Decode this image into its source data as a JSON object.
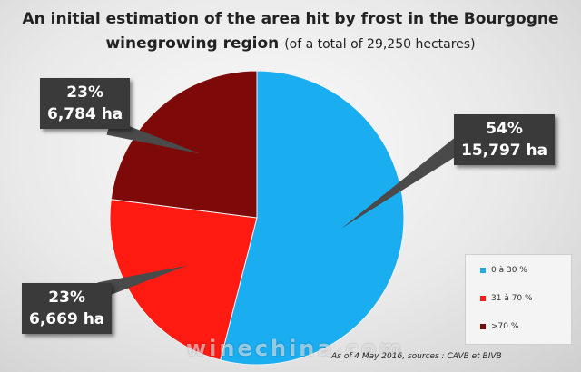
{
  "chart_data": {
    "type": "pie",
    "title": "An initial estimation of the area hit by frost in the Bourgogne winegrowing region",
    "subtitle": "(of a total of 29,250 hectares)",
    "legend_position": "bottom-right",
    "slices": [
      {
        "name": "0 à 30 %",
        "percent": 54,
        "hectares": 15797,
        "percent_label": "54%",
        "area_label": "15,797 ha",
        "color": "#1aadf0"
      },
      {
        "name": "31 à 70 %",
        "percent": 23,
        "hectares": 6669,
        "percent_label": "23%",
        "area_label": "6,669 ha",
        "color": "#ff1a12"
      },
      {
        "name": ">70 %",
        "percent": 23,
        "hectares": 6784,
        "percent_label": "23%",
        "area_label": "6,784 ha",
        "color": "#7d0a08"
      }
    ],
    "source_note": "As of 4 May 2016,  sources : CAVB et BIVB"
  },
  "colors": {
    "callout_bg": "#3a3a3a",
    "pointer": "#4a4a4a"
  },
  "watermark": "winechina.com"
}
